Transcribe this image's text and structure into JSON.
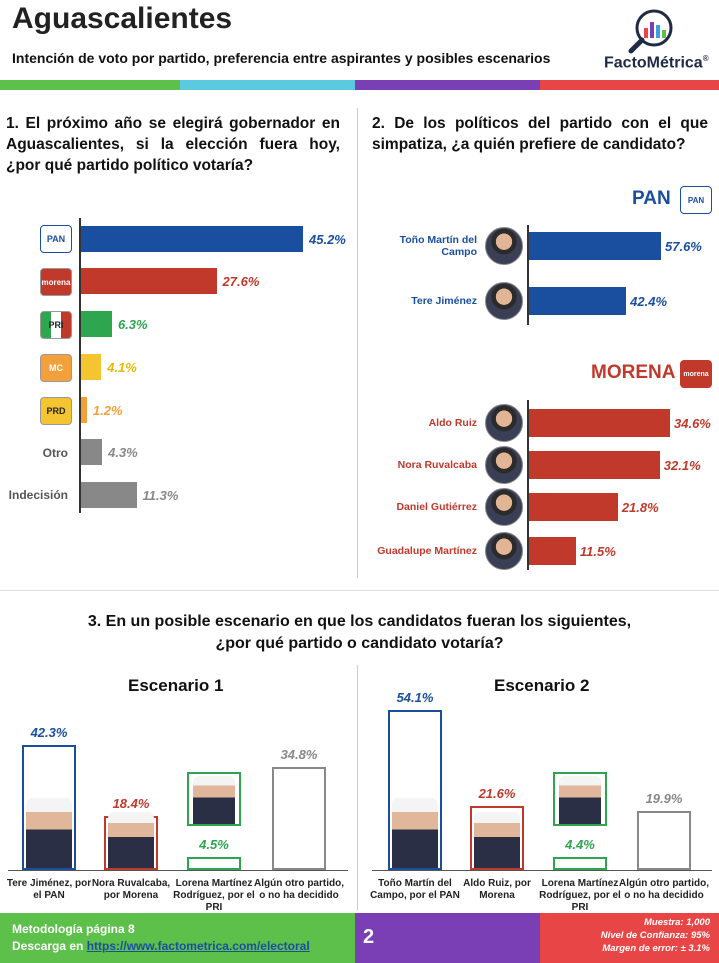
{
  "header": {
    "title": "Aguascalientes",
    "subtitle": "Intención de voto por partido, preferencia entre aspirantes y posibles escenarios",
    "brand": "FactoMétrica",
    "registered": "®"
  },
  "colors": {
    "pan": "#1a4fa0",
    "morena": "#c0392b",
    "pri": "#2ea54f",
    "mc": "#f5c431",
    "prd": "#f2a13a",
    "gray": "#888888",
    "footer_green": "#5cc04a",
    "footer_purple": "#7b3fb5",
    "footer_red": "#e84646"
  },
  "q1": {
    "question": "1. El próximo año se elegirá gobernador en Aguascalientes, si la elección fuera hoy, ¿por qué partido político votaría?",
    "row_labels": [
      "Otro",
      "Indecisión"
    ],
    "icons": [
      "PAN",
      "morena",
      "PRI",
      "MC",
      "PRD"
    ]
  },
  "q2": {
    "question": "2. De los políticos del partido con el que simpatiza, ¿a quién prefiere de candidato?",
    "pan_label": "PAN",
    "morena_label": "MORENA",
    "morena_icon": "morena"
  },
  "q3": {
    "question_line1": "3. En un posible escenario en que los candidatos fueran los siguientes,",
    "question_line2": "¿por qué partido o candidato votaría?",
    "scenario1_title": "Escenario 1",
    "scenario2_title": "Escenario 2"
  },
  "chart_data": [
    {
      "type": "bar",
      "title": "1. El próximo año se elegirá gobernador en Aguascalientes, si la elección fuera hoy, ¿por qué partido político votaría?",
      "categories": [
        "PAN",
        "Morena",
        "PRI",
        "MC",
        "PRD",
        "Otro",
        "Indecisión"
      ],
      "values": [
        45.2,
        27.6,
        6.3,
        4.1,
        1.2,
        4.3,
        11.3
      ],
      "value_labels": [
        "45.2%",
        "27.6%",
        "6.3%",
        "4.1%",
        "1.2%",
        "4.3%",
        "11.3%"
      ],
      "colors": [
        "#1a4fa0",
        "#c0392b",
        "#2ea54f",
        "#f5c431",
        "#f2a13a",
        "#888888",
        "#888888"
      ]
    },
    {
      "type": "bar",
      "title": "PAN",
      "categories": [
        "Toño Martín del Campo",
        "Tere Jiménez"
      ],
      "values": [
        57.6,
        42.4
      ],
      "value_labels": [
        "57.6%",
        "42.4%"
      ],
      "color": "#1a4fa0"
    },
    {
      "type": "bar",
      "title": "MORENA",
      "categories": [
        "Aldo Ruiz",
        "Nora Ruvalcaba",
        "Daniel Gutiérrez",
        "Guadalupe Martínez"
      ],
      "values": [
        34.6,
        32.1,
        21.8,
        11.5
      ],
      "value_labels": [
        "34.6%",
        "32.1%",
        "21.8%",
        "11.5%"
      ],
      "color": "#c0392b"
    },
    {
      "type": "bar",
      "title": "Escenario 1",
      "categories": [
        "Tere Jiménez, por el PAN",
        "Nora Ruvalcaba, por Morena",
        "Lorena Martínez Rodríguez, por el PRI",
        "Algún otro partido, o no ha decidido"
      ],
      "values": [
        42.3,
        18.4,
        4.5,
        34.8
      ],
      "value_labels": [
        "42.3%",
        "18.4%",
        "4.5%",
        "34.8%"
      ],
      "colors": [
        "#1a4fa0",
        "#c0392b",
        "#2ea54f",
        "#888888"
      ]
    },
    {
      "type": "bar",
      "title": "Escenario 2",
      "categories": [
        "Toño Martín del Campo, por el PAN",
        "Aldo Ruiz, por Morena",
        "Lorena Martínez Rodríguez, por el PRI",
        "Algún otro partido, o no ha decidido"
      ],
      "values": [
        54.1,
        21.6,
        4.4,
        19.9
      ],
      "value_labels": [
        "54.1%",
        "21.6%",
        "4.4%",
        "19.9%"
      ],
      "colors": [
        "#1a4fa0",
        "#c0392b",
        "#2ea54f",
        "#888888"
      ]
    }
  ],
  "footer": {
    "methodology": "Metodología página 8",
    "download_prefix": "Descarga en",
    "download_url": "https://www.factometrica.com/electoral",
    "page_number": "2",
    "sample": "Muestra: 1,000",
    "confidence": "Nivel de Confianza: 95%",
    "margin": "Margen de error: ± 3.1%"
  }
}
